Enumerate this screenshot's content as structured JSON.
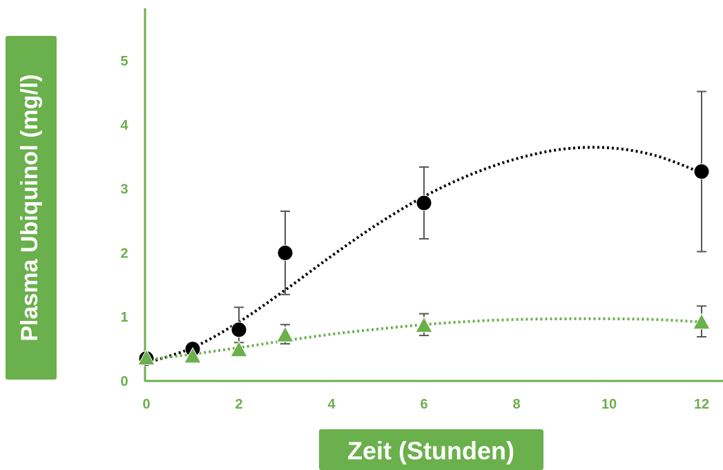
{
  "chart_data": {
    "type": "scatter",
    "xlabel": "Zeit (Stunden)",
    "ylabel": "Plasma Ubiquinol (mg/l)",
    "xlim": [
      0,
      12
    ],
    "ylim": [
      0,
      5
    ],
    "x_ticks": [
      "0",
      "2",
      "4",
      "6",
      "8",
      "10",
      "12"
    ],
    "y_ticks": [
      "0",
      "1",
      "2",
      "3",
      "4",
      "5"
    ],
    "grid": false,
    "legend": "none",
    "colors": {
      "accent": "#6ab04c",
      "series_black": "#000000",
      "series_green": "#6ab04c",
      "error_bar": "#555555"
    },
    "series": [
      {
        "marker": "circle",
        "color": "#000000",
        "points": [
          {
            "x": 0,
            "y": 0.35,
            "err": 0
          },
          {
            "x": 1,
            "y": 0.5,
            "err": 0
          },
          {
            "x": 2,
            "y": 0.8,
            "err": 0.35
          },
          {
            "x": 3,
            "y": 2.0,
            "err": 0.65
          },
          {
            "x": 6,
            "y": 2.78,
            "err": 0.56
          },
          {
            "x": 12,
            "y": 3.27,
            "err": 1.25
          }
        ],
        "trendline": [
          {
            "x": 0,
            "y": 0.28
          },
          {
            "x": 1,
            "y": 0.52
          },
          {
            "x": 2,
            "y": 0.92
          },
          {
            "x": 3,
            "y": 1.42
          },
          {
            "x": 4,
            "y": 1.95
          },
          {
            "x": 5,
            "y": 2.45
          },
          {
            "x": 6,
            "y": 2.88
          },
          {
            "x": 7,
            "y": 3.22
          },
          {
            "x": 8,
            "y": 3.47
          },
          {
            "x": 9,
            "y": 3.62
          },
          {
            "x": 10,
            "y": 3.64
          },
          {
            "x": 11,
            "y": 3.52
          },
          {
            "x": 12,
            "y": 3.25
          }
        ]
      },
      {
        "marker": "triangle",
        "color": "#6ab04c",
        "points": [
          {
            "x": 0,
            "y": 0.37,
            "err": 0
          },
          {
            "x": 1,
            "y": 0.4,
            "err": 0
          },
          {
            "x": 2,
            "y": 0.5,
            "err": 0.1
          },
          {
            "x": 3,
            "y": 0.73,
            "err": 0.15
          },
          {
            "x": 6,
            "y": 0.88,
            "err": 0.17
          },
          {
            "x": 12,
            "y": 0.93,
            "err": 0.24
          }
        ],
        "trendline": [
          {
            "x": 0,
            "y": 0.33
          },
          {
            "x": 1,
            "y": 0.42
          },
          {
            "x": 2,
            "y": 0.52
          },
          {
            "x": 3,
            "y": 0.63
          },
          {
            "x": 4,
            "y": 0.73
          },
          {
            "x": 5,
            "y": 0.81
          },
          {
            "x": 6,
            "y": 0.88
          },
          {
            "x": 7,
            "y": 0.93
          },
          {
            "x": 8,
            "y": 0.96
          },
          {
            "x": 9,
            "y": 0.97
          },
          {
            "x": 10,
            "y": 0.97
          },
          {
            "x": 11,
            "y": 0.96
          },
          {
            "x": 12,
            "y": 0.92
          }
        ]
      }
    ]
  }
}
